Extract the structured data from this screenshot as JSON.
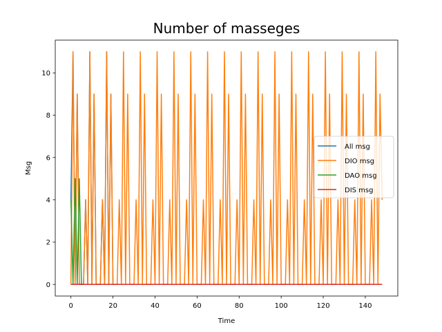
{
  "chart_data": {
    "type": "line",
    "title": "Number of masseges",
    "xlabel": "Time",
    "ylabel": "Msg",
    "xlim": [
      -7.45,
      155.45
    ],
    "ylim": [
      -0.55,
      11.55
    ],
    "xticks": [
      0,
      20,
      40,
      60,
      80,
      100,
      120,
      140
    ],
    "yticks": [
      0,
      2,
      4,
      6,
      8,
      10
    ],
    "grid": false,
    "legend_position": "center-right",
    "series": [
      {
        "name": "All msg",
        "color": "#1f77b4",
        "x": [
          0,
          1,
          2,
          3,
          4,
          5,
          6,
          7,
          8,
          9,
          10,
          11,
          12,
          13,
          14,
          15,
          16,
          17,
          18,
          19,
          20
        ],
        "y": [
          4,
          11,
          0,
          9,
          0,
          0,
          0,
          4,
          0,
          11,
          0,
          9,
          0,
          0,
          0,
          4,
          0,
          11,
          0,
          9,
          0
        ]
      },
      {
        "name": "DIO msg",
        "color": "#ff7f0e",
        "x": [
          0,
          1,
          2,
          3,
          4,
          5,
          6,
          7,
          8,
          9,
          10,
          11,
          12,
          13,
          14,
          15,
          16,
          17,
          18,
          19,
          20,
          21,
          22,
          23,
          24,
          25,
          26,
          27,
          28,
          29,
          30,
          31,
          32,
          33,
          34,
          35,
          36,
          37,
          38,
          39,
          40,
          41,
          42,
          43,
          44,
          45,
          46,
          47,
          48,
          49,
          50,
          51,
          52,
          53,
          54,
          55,
          56,
          57,
          58,
          59,
          60,
          61,
          62,
          63,
          64,
          65,
          66,
          67,
          68,
          69,
          70,
          71,
          72,
          73,
          74,
          75,
          76,
          77,
          78,
          79,
          80,
          81,
          82,
          83,
          84,
          85,
          86,
          87,
          88,
          89,
          90,
          91,
          92,
          93,
          94,
          95,
          96,
          97,
          98,
          99,
          100,
          101,
          102,
          103,
          104,
          105,
          106,
          107,
          108,
          109,
          110,
          111,
          112,
          113,
          114,
          115,
          116,
          117,
          118,
          119,
          120,
          121,
          122,
          123,
          124,
          125,
          126,
          127,
          128,
          129,
          130,
          131,
          132,
          133,
          134,
          135,
          136,
          137,
          138,
          139,
          140,
          141,
          142,
          143,
          144,
          145,
          146,
          147,
          148
        ],
        "y": [
          0,
          11,
          0,
          9,
          0,
          0,
          0,
          4,
          0,
          11,
          0,
          9,
          0,
          0,
          0,
          4,
          0,
          11,
          0,
          9,
          0,
          0,
          0,
          4,
          0,
          11,
          0,
          9,
          0,
          0,
          0,
          4,
          0,
          11,
          0,
          9,
          0,
          0,
          0,
          4,
          0,
          11,
          0,
          9,
          0,
          0,
          0,
          4,
          0,
          11,
          0,
          9,
          0,
          0,
          0,
          4,
          0,
          11,
          0,
          9,
          0,
          0,
          0,
          4,
          0,
          11,
          0,
          9,
          0,
          0,
          0,
          4,
          0,
          11,
          0,
          9,
          0,
          0,
          0,
          4,
          0,
          11,
          0,
          9,
          0,
          0,
          0,
          4,
          0,
          11,
          0,
          9,
          0,
          0,
          0,
          4,
          0,
          11,
          0,
          9,
          0,
          0,
          0,
          4,
          0,
          11,
          0,
          9,
          0,
          0,
          0,
          4,
          0,
          11,
          0,
          9,
          0,
          0,
          0,
          4,
          0,
          11,
          0,
          9,
          0,
          0,
          0,
          4,
          0,
          11,
          0,
          9,
          0,
          0,
          0,
          4,
          0,
          11,
          0,
          9,
          0,
          0,
          0,
          4,
          0,
          11,
          0,
          9,
          4
        ]
      },
      {
        "name": "DAO msg",
        "color": "#2ca02c",
        "x": [
          0,
          1,
          2,
          3,
          4,
          5,
          6
        ],
        "y": [
          4,
          0,
          5,
          0,
          5,
          0,
          0
        ]
      },
      {
        "name": "DIS msg",
        "color": "#d62728",
        "x": [
          0,
          148
        ],
        "y": [
          0,
          0
        ]
      }
    ]
  }
}
